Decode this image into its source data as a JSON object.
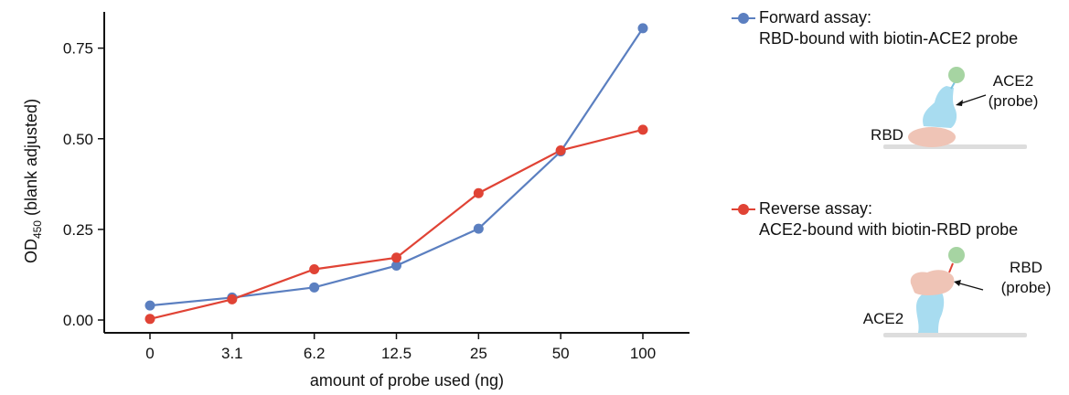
{
  "chart_data": {
    "type": "line",
    "categories": [
      "0",
      "3.1",
      "6.2",
      "12.5",
      "25",
      "50",
      "100"
    ],
    "xlabel": "amount of probe used (ng)",
    "ylabel": {
      "main": "OD",
      "subscript": "450",
      "suffix": " (blank adjusted)"
    },
    "ylim": [
      0,
      0.85
    ],
    "yticks": [
      0.0,
      0.25,
      0.5,
      0.75
    ],
    "ytick_labels": [
      "0.00",
      "0.25",
      "0.50",
      "0.75"
    ],
    "grid": false,
    "legend_placement": "right",
    "series": [
      {
        "name": "Forward assay:",
        "description": "RBD-bound with biotin-ACE2 probe",
        "color": "#5B7FC0",
        "values": [
          0.04,
          0.062,
          0.09,
          0.15,
          0.252,
          0.465,
          0.805
        ]
      },
      {
        "name": "Reverse assay:",
        "description": "ACE2-bound with biotin-RBD probe",
        "color": "#E04335",
        "values": [
          0.003,
          0.057,
          0.14,
          0.172,
          0.35,
          0.468,
          0.525
        ]
      }
    ]
  },
  "diagrams": {
    "forward": {
      "surface_label": "RBD",
      "probe_label_line1": "ACE2",
      "probe_label_line2": "(probe)"
    },
    "reverse": {
      "surface_label": "ACE2",
      "probe_label_line1": "RBD",
      "probe_label_line2": "(probe)"
    },
    "colors": {
      "ace2": "#A8DCF0",
      "rbd": "#EFC4B6",
      "biotin": "#A6D4A2",
      "surface": "#DDDDDD"
    }
  }
}
